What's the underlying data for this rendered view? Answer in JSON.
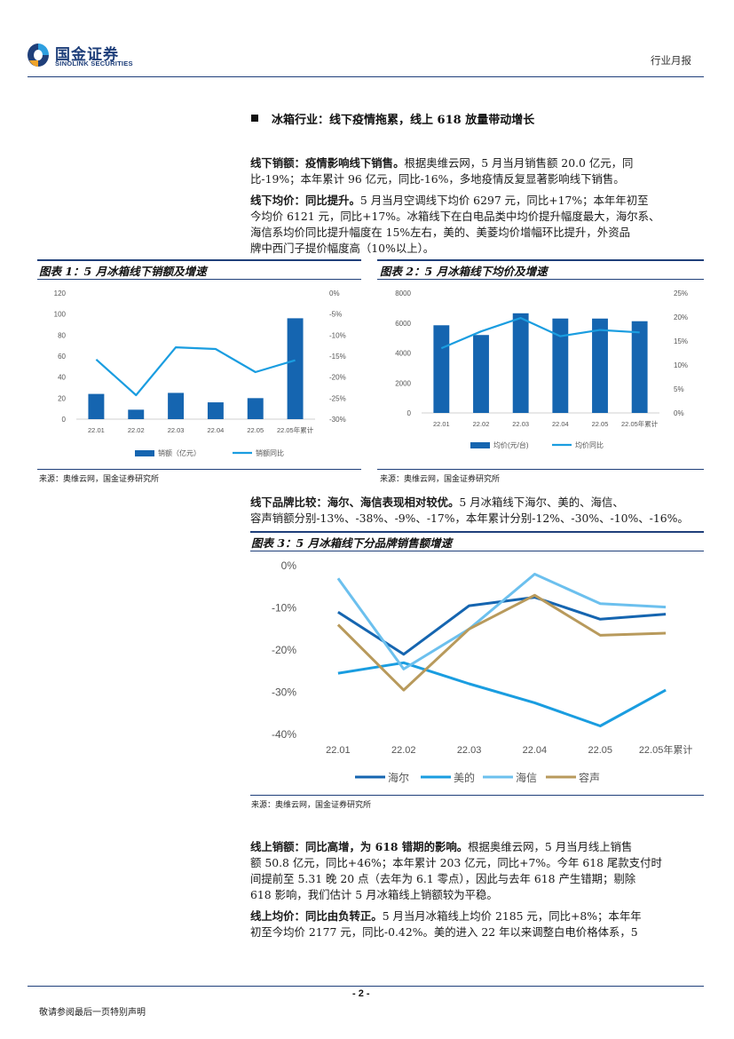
{
  "header": {
    "brand_cn": "国金证券",
    "brand_en": "SINOLINK SECURITIES",
    "report_type": "行业月报"
  },
  "section": {
    "title": "冰箱行业：线下疫情拖累，线上 618 放量带动增长"
  },
  "paragraphs": {
    "p1": {
      "lead": "线下销额：疫情影响线下销售。",
      "lines": [
        "根据奥维云网，5 月当月销售额 20.0 亿元，同",
        "比-19%；本年累计 96 亿元，同比-16%，多地疫情反复显著影响线下销售。"
      ]
    },
    "p2": {
      "lead": "线下均价：同比提升。",
      "lines": [
        "5 月当月空调线下均价 6297 元，同比+17%；本年年初至",
        "今均价 6121 元，同比+17%。冰箱线下在白电品类中均价提升幅度最大，海尔系、",
        "海信系均价同比提升幅度在 15%左右，美的、美菱均价增幅环比提升，外资品",
        "牌中西门子提价幅度高（10%以上）。"
      ]
    },
    "p3": {
      "lead": "线下品牌比较：海尔、海信表现相对较优。",
      "lines": [
        "5 月冰箱线下海尔、美的、海信、",
        "容声销额分别-13%、-38%、-9%、-17%，本年累计分别-12%、-30%、-10%、-16%。"
      ]
    },
    "p4": {
      "lead": "线上销额：同比高增，为 618 错期的影响。",
      "lines": [
        "根据奥维云网，5 月当月线上销售",
        "额 50.8 亿元，同比+46%；本年累计 203 亿元，同比+7%。今年 618 尾款支付时",
        "间提前至 5.31 晚 20 点（去年为 6.1 零点），因此与去年 618 产生错期；剔除",
        "618 影响，我们估计 5 月冰箱线上销额较为平稳。"
      ]
    },
    "p5": {
      "lead": "线上均价：同比由负转正。",
      "lines": [
        "5 月当月冰箱线上均价 2185 元，同比+8%；本年年",
        "初至今均价 2177 元，同比-0.42%。美的进入 22 年以来调整白电价格体系，5"
      ]
    }
  },
  "figures": {
    "fig1": {
      "title": "图表 1：5 月冰箱线下销额及增速",
      "source": "来源：奥维云网，国金证券研究所"
    },
    "fig2": {
      "title": "图表 2：5 月冰箱线下均价及增速",
      "source": "来源：奥维云网，国金证券研究所"
    },
    "fig3": {
      "title": "图表 3：5 月冰箱线下分品牌销售额增速",
      "source": "来源：奥维云网，国金证券研究所"
    }
  },
  "footer": {
    "page": "- 2 -",
    "disclaimer": "敬请参阅最后一页特别声明"
  },
  "colors": {
    "navy": "#1f3f7a",
    "bar": "#1565b0",
    "line": "#1a9de0",
    "haier": "#1565b0",
    "midea": "#1a9de0",
    "hisense": "#6cc0ee",
    "rongsheng": "#b89a5c"
  },
  "chart_data": [
    {
      "id": "fig1",
      "type": "bar",
      "categories": [
        "22.01",
        "22.02",
        "22.03",
        "22.04",
        "22.05",
        "22.05年累计"
      ],
      "series": [
        {
          "name": "销额（亿元）",
          "type": "bar",
          "axis": "left",
          "values": [
            24,
            9,
            25,
            16,
            20,
            96
          ]
        },
        {
          "name": "销额同比",
          "type": "line",
          "axis": "right",
          "values": [
            -15.8,
            -24.3,
            -12.9,
            -13.3,
            -18.8,
            -16.0
          ]
        }
      ],
      "y_left": {
        "range": [
          0,
          120
        ],
        "ticks": [
          0,
          20,
          40,
          60,
          80,
          100,
          120
        ]
      },
      "y_right": {
        "range": [
          -30,
          0
        ],
        "ticks": [
          "-30%",
          "-25%",
          "-20%",
          "-15%",
          "-10%",
          "-5%",
          "0%"
        ]
      },
      "legend": "bottom",
      "grid": false
    },
    {
      "id": "fig2",
      "type": "bar",
      "categories": [
        "22.01",
        "22.02",
        "22.03",
        "22.04",
        "22.05",
        "22.05年累计"
      ],
      "series": [
        {
          "name": "均价(元/台)",
          "type": "bar",
          "axis": "left",
          "values": [
            5850,
            5200,
            6650,
            6300,
            6297,
            6121
          ]
        },
        {
          "name": "均价同比",
          "type": "line",
          "axis": "right",
          "values": [
            13.5,
            17.0,
            19.8,
            16.0,
            17.3,
            16.8
          ]
        }
      ],
      "y_left": {
        "range": [
          0,
          8000
        ],
        "ticks": [
          0,
          2000,
          4000,
          6000,
          8000
        ]
      },
      "y_right": {
        "range": [
          0,
          25
        ],
        "ticks": [
          "0%",
          "5%",
          "10%",
          "15%",
          "20%",
          "25%"
        ]
      },
      "legend": "bottom",
      "grid": false
    },
    {
      "id": "fig3",
      "type": "line",
      "categories": [
        "22.01",
        "22.02",
        "22.03",
        "22.04",
        "22.05",
        "22.05年累计"
      ],
      "series": [
        {
          "name": "海尔",
          "values": [
            -11,
            -21,
            -9.5,
            -7.5,
            -12.7,
            -11.5
          ]
        },
        {
          "name": "美的",
          "values": [
            -25.5,
            -23,
            -28,
            -32.5,
            -38,
            -29.5
          ]
        },
        {
          "name": "海信",
          "values": [
            -3,
            -24.5,
            -15,
            -2,
            -9,
            -9.8
          ]
        },
        {
          "name": "容声",
          "values": [
            -14,
            -29.5,
            -15,
            -7,
            -16.5,
            -16
          ]
        }
      ],
      "y": {
        "range": [
          -40,
          0
        ],
        "ticks": [
          "-40%",
          "-30%",
          "-20%",
          "-10%",
          "0%"
        ]
      },
      "legend": "bottom",
      "grid": false
    }
  ]
}
